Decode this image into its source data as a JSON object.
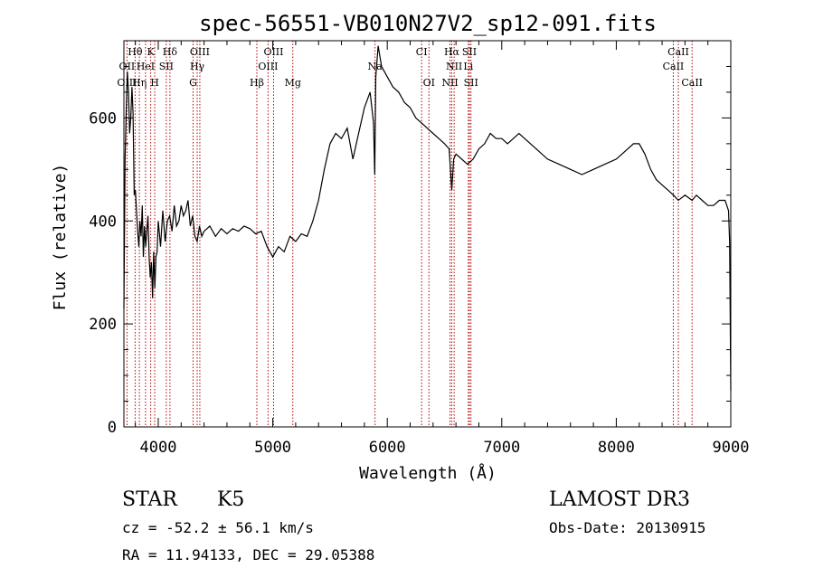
{
  "chart_data": {
    "type": "line",
    "title": "spec-56551-VB010N27V2_sp12-091.fits",
    "xlabel": "Wavelength (Å)",
    "ylabel": "Flux (relative)",
    "xlim": [
      3700,
      9000
    ],
    "ylim": [
      0,
      750
    ],
    "xticks": [
      4000,
      5000,
      6000,
      7000,
      8000,
      9000
    ],
    "yticks": [
      0,
      200,
      400,
      600
    ],
    "grid": false,
    "series": [
      {
        "line_color": "#000000",
        "points": [
          [
            3700,
            230
          ],
          [
            3710,
            520
          ],
          [
            3720,
            610
          ],
          [
            3730,
            690
          ],
          [
            3740,
            650
          ],
          [
            3750,
            570
          ],
          [
            3760,
            600
          ],
          [
            3770,
            660
          ],
          [
            3780,
            610
          ],
          [
            3790,
            450
          ],
          [
            3800,
            460
          ],
          [
            3810,
            420
          ],
          [
            3820,
            380
          ],
          [
            3830,
            350
          ],
          [
            3840,
            400
          ],
          [
            3850,
            370
          ],
          [
            3860,
            430
          ],
          [
            3870,
            330
          ],
          [
            3880,
            390
          ],
          [
            3890,
            350
          ],
          [
            3900,
            380
          ],
          [
            3910,
            410
          ],
          [
            3920,
            330
          ],
          [
            3930,
            290
          ],
          [
            3940,
            320
          ],
          [
            3950,
            250
          ],
          [
            3960,
            340
          ],
          [
            3970,
            270
          ],
          [
            3980,
            330
          ],
          [
            3990,
            340
          ],
          [
            4000,
            400
          ],
          [
            4020,
            350
          ],
          [
            4040,
            420
          ],
          [
            4060,
            360
          ],
          [
            4080,
            400
          ],
          [
            4100,
            410
          ],
          [
            4120,
            380
          ],
          [
            4140,
            430
          ],
          [
            4160,
            390
          ],
          [
            4180,
            400
          ],
          [
            4200,
            430
          ],
          [
            4220,
            410
          ],
          [
            4240,
            420
          ],
          [
            4260,
            440
          ],
          [
            4280,
            390
          ],
          [
            4300,
            410
          ],
          [
            4320,
            370
          ],
          [
            4340,
            360
          ],
          [
            4360,
            390
          ],
          [
            4380,
            370
          ],
          [
            4400,
            380
          ],
          [
            4450,
            390
          ],
          [
            4500,
            370
          ],
          [
            4550,
            385
          ],
          [
            4600,
            375
          ],
          [
            4650,
            385
          ],
          [
            4700,
            380
          ],
          [
            4750,
            390
          ],
          [
            4800,
            385
          ],
          [
            4850,
            375
          ],
          [
            4900,
            380
          ],
          [
            4950,
            350
          ],
          [
            5000,
            330
          ],
          [
            5050,
            350
          ],
          [
            5100,
            340
          ],
          [
            5150,
            370
          ],
          [
            5200,
            360
          ],
          [
            5250,
            375
          ],
          [
            5300,
            370
          ],
          [
            5350,
            400
          ],
          [
            5400,
            440
          ],
          [
            5450,
            500
          ],
          [
            5500,
            550
          ],
          [
            5550,
            570
          ],
          [
            5600,
            560
          ],
          [
            5650,
            580
          ],
          [
            5700,
            520
          ],
          [
            5750,
            570
          ],
          [
            5800,
            620
          ],
          [
            5850,
            650
          ],
          [
            5880,
            590
          ],
          [
            5890,
            490
          ],
          [
            5900,
            680
          ],
          [
            5920,
            740
          ],
          [
            5950,
            700
          ],
          [
            6000,
            680
          ],
          [
            6050,
            660
          ],
          [
            6100,
            650
          ],
          [
            6150,
            630
          ],
          [
            6200,
            620
          ],
          [
            6250,
            600
          ],
          [
            6300,
            590
          ],
          [
            6350,
            580
          ],
          [
            6400,
            570
          ],
          [
            6450,
            560
          ],
          [
            6500,
            550
          ],
          [
            6540,
            540
          ],
          [
            6563,
            460
          ],
          [
            6580,
            520
          ],
          [
            6600,
            530
          ],
          [
            6650,
            520
          ],
          [
            6700,
            510
          ],
          [
            6750,
            520
          ],
          [
            6800,
            540
          ],
          [
            6850,
            550
          ],
          [
            6900,
            570
          ],
          [
            6950,
            560
          ],
          [
            7000,
            560
          ],
          [
            7050,
            550
          ],
          [
            7100,
            560
          ],
          [
            7150,
            570
          ],
          [
            7200,
            560
          ],
          [
            7300,
            540
          ],
          [
            7400,
            520
          ],
          [
            7500,
            510
          ],
          [
            7600,
            500
          ],
          [
            7700,
            490
          ],
          [
            7800,
            500
          ],
          [
            7900,
            510
          ],
          [
            8000,
            520
          ],
          [
            8050,
            530
          ],
          [
            8100,
            540
          ],
          [
            8150,
            550
          ],
          [
            8200,
            550
          ],
          [
            8250,
            530
          ],
          [
            8300,
            500
          ],
          [
            8350,
            480
          ],
          [
            8400,
            470
          ],
          [
            8450,
            460
          ],
          [
            8500,
            450
          ],
          [
            8542,
            440
          ],
          [
            8600,
            450
          ],
          [
            8662,
            440
          ],
          [
            8700,
            450
          ],
          [
            8750,
            440
          ],
          [
            8800,
            430
          ],
          [
            8850,
            430
          ],
          [
            8900,
            440
          ],
          [
            8950,
            440
          ],
          [
            8980,
            420
          ],
          [
            8990,
            360
          ],
          [
            9000,
            70
          ]
        ]
      }
    ],
    "line_markers": [
      {
        "label": "Hθ",
        "x": 3798,
        "row": 1
      },
      {
        "label": "K",
        "x": 3934,
        "row": 1
      },
      {
        "label": "Hδ",
        "x": 4102,
        "row": 1
      },
      {
        "label": "OIII",
        "x": 4363,
        "row": 1
      },
      {
        "label": "OIII",
        "x": 5007,
        "row": 1
      },
      {
        "label": "CI",
        "x": 6300,
        "row": 1
      },
      {
        "label": "Hα",
        "x": 6563,
        "row": 1
      },
      {
        "label": "SII",
        "x": 6717,
        "row": 1
      },
      {
        "label": "CaII",
        "x": 8542,
        "row": 1
      },
      {
        "label": "OII",
        "x": 3727,
        "row": 2
      },
      {
        "label": "HeI",
        "x": 3889,
        "row": 2
      },
      {
        "label": "SII",
        "x": 4070,
        "row": 2
      },
      {
        "label": "Hγ",
        "x": 4340,
        "row": 2
      },
      {
        "label": "OIII",
        "x": 4959,
        "row": 2
      },
      {
        "label": "Na",
        "x": 5893,
        "row": 2
      },
      {
        "label": "NII",
        "x": 6584,
        "row": 2
      },
      {
        "label": "Li",
        "x": 6708,
        "row": 2
      },
      {
        "label": "CaII",
        "x": 8498,
        "row": 2
      },
      {
        "label": "OIII",
        "x": 3727,
        "row": 3
      },
      {
        "label": "Hη",
        "x": 3835,
        "row": 3
      },
      {
        "label": "H",
        "x": 3969,
        "row": 3
      },
      {
        "label": "G",
        "x": 4304,
        "row": 3
      },
      {
        "label": "Hβ",
        "x": 4861,
        "row": 3
      },
      {
        "label": "Mg",
        "x": 5175,
        "row": 3
      },
      {
        "label": "OI",
        "x": 6364,
        "row": 3
      },
      {
        "label": "NII",
        "x": 6548,
        "row": 3
      },
      {
        "label": "SII",
        "x": 6731,
        "row": 3
      },
      {
        "label": "CaII",
        "x": 8662,
        "row": 3
      }
    ]
  },
  "info": {
    "class_label": "STAR",
    "subclass": "K5",
    "survey": "LAMOST DR3",
    "redshift": "cz = -52.2 ± 56.1 km/s",
    "obs_date": "Obs-Date: 20130915",
    "coords": "RA =  11.94133, DEC =  29.05388"
  },
  "colors": {
    "axis": "#000000",
    "marker_line": "#b40000",
    "spectrum": "#000000"
  }
}
